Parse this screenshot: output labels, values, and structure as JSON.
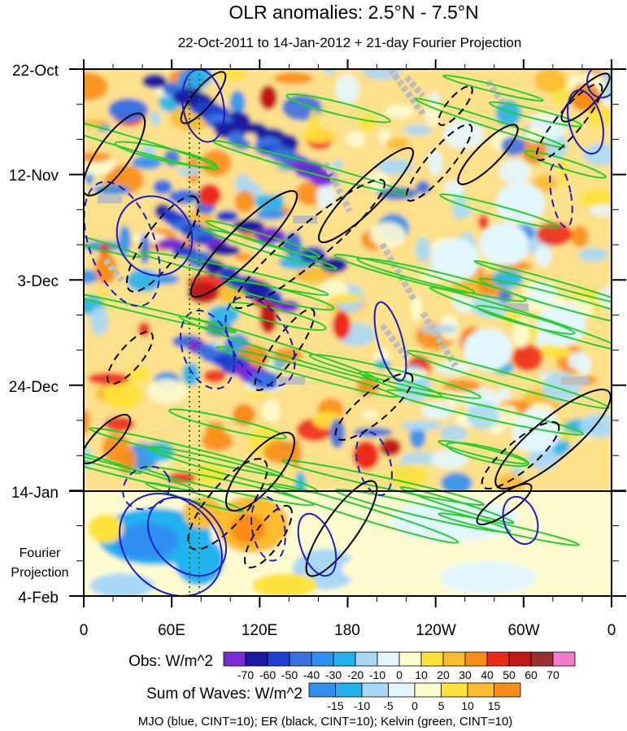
{
  "chart_data": {
    "type": "heatmap",
    "title": "OLR anomalies: 2.5°N - 7.5°N",
    "subtitle": "22-Oct-2011 to 14-Jan-2012 + 21-day Fourier Projection",
    "x_ticks": [
      "0",
      "60E",
      "120E",
      "180",
      "120W",
      "60W",
      "0"
    ],
    "y_ticks": [
      "22-Oct",
      "12-Nov",
      "3-Dec",
      "24-Dec",
      "14-Jan",
      "4-Feb"
    ],
    "projection_label": [
      "Fourier",
      "Projection"
    ],
    "obs_colorbar": {
      "label": "Obs: W/m^2",
      "levels": [
        "-70",
        "-60",
        "-50",
        "-40",
        "-30",
        "-20",
        "-10",
        "0",
        "10",
        "20",
        "30",
        "40",
        "50",
        "60",
        "70"
      ],
      "colors": [
        "#7a2bd6",
        "#1a1aa0",
        "#1f3fd0",
        "#3a6fe0",
        "#2f8ff0",
        "#22b2f0",
        "#a8d8f6",
        "#e2f7ff",
        "#fffcd0",
        "#ffe23a",
        "#fdbb2e",
        "#f98d18",
        "#ee2a1a",
        "#c31616",
        "#9c2f2f",
        "#f27ccf"
      ]
    },
    "waves_colorbar": {
      "label": "Sum of Waves: W/m^2",
      "levels": [
        "-15",
        "-10",
        "-5",
        "0",
        "5",
        "10",
        "15"
      ],
      "colors": [
        "#2f8ff0",
        "#22b2f0",
        "#a8d8f6",
        "#e2f7ff",
        "#fffcd0",
        "#ffe23a",
        "#fdbb2e",
        "#f98d18"
      ]
    },
    "contour_legend": "MJO (blue, CINT=10); ER (black, CINT=10); Kelvin (green, CINT=10)",
    "series_colors": {
      "mjo": "#1b1bc8",
      "er": "#000000",
      "kelvin": "#22d02a"
    }
  }
}
